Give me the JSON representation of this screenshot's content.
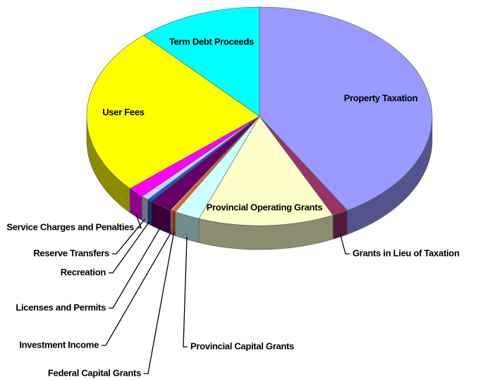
{
  "chart_data": {
    "type": "pie3d",
    "categories": [
      "Property Taxation",
      "Grants in Lieu of Taxation",
      "Provincial Operating Grants",
      "Provincial Capital Grants",
      "Federal Capital Grants",
      "Investment Income",
      "Licenses and Permits",
      "Recreation",
      "Reserve Transfers",
      "Service Charges and Penalties",
      "User Fees",
      "Term Debt Proceeds"
    ],
    "values": [
      41.5,
      1.5,
      12.7,
      2.4,
      0.3,
      0.2,
      2.2,
      0.4,
      0.7,
      1.6,
      24.8,
      11.7
    ],
    "colors": [
      "#9999ff",
      "#993366",
      "#ffffcc",
      "#ccffff",
      "#ff6600",
      "#ff9999",
      "#660066",
      "#0066cc",
      "#ccccff",
      "#ff00ff",
      "#ffff00",
      "#00ffff"
    ]
  }
}
